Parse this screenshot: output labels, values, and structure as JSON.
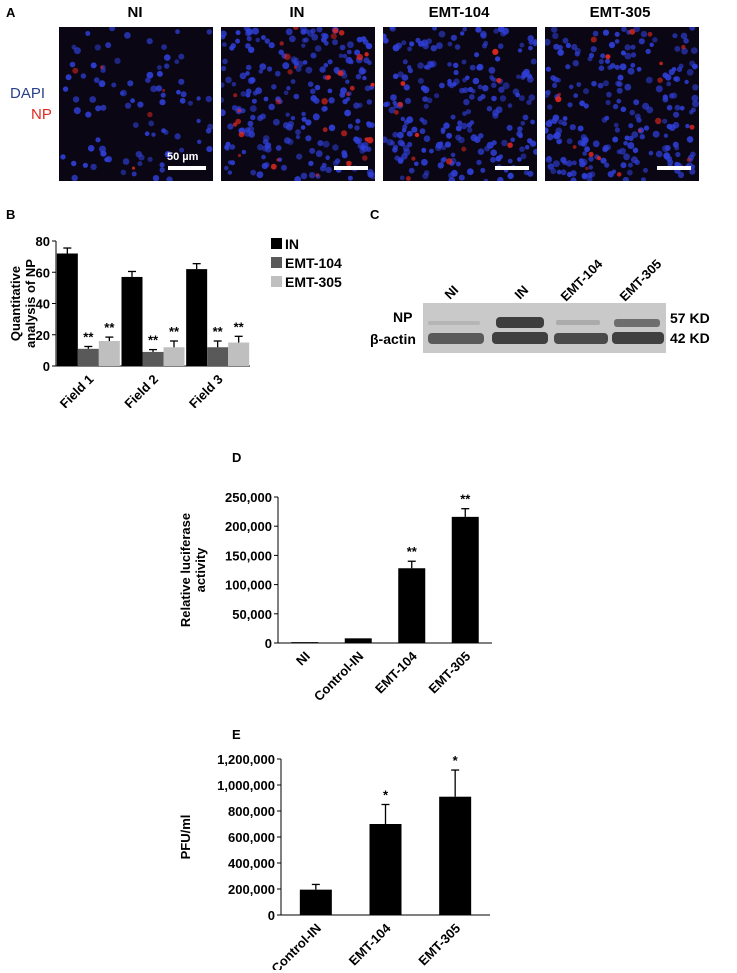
{
  "panels": {
    "A": {
      "letter": "A",
      "titles": [
        "NI",
        "IN",
        "EMT-104",
        "EMT-305"
      ],
      "stain_dapi": "DAPI",
      "stain_np": "NP",
      "dapi_color": "#2a3f8c",
      "np_color": "#e0281f",
      "scale_label": "50 µm",
      "np_intensity": [
        0.08,
        0.55,
        0.18,
        0.3
      ]
    },
    "B": {
      "letter": "B"
    },
    "C": {
      "letter": "C",
      "lanes": [
        "NI",
        "IN",
        "EMT-104",
        "EMT-305"
      ],
      "rows": [
        "NP",
        "β-actin"
      ],
      "sizes": [
        "57 KDa",
        "42 KDa"
      ]
    },
    "D": {
      "letter": "D"
    },
    "E": {
      "letter": "E"
    }
  },
  "chart_data": [
    {
      "id": "B",
      "type": "bar",
      "categories": [
        "Field 1",
        "Field 2",
        "Field 3"
      ],
      "series": [
        {
          "name": "IN",
          "values": [
            72,
            57,
            62
          ],
          "errors": [
            3.5,
            3.5,
            3.5
          ],
          "color": "#000000",
          "marks": [
            "",
            "",
            ""
          ]
        },
        {
          "name": "EMT-104",
          "values": [
            11,
            9,
            12
          ],
          "errors": [
            1.5,
            1.5,
            4
          ],
          "color": "#595959",
          "marks": [
            "**",
            "**",
            "**"
          ]
        },
        {
          "name": "EMT-305",
          "values": [
            16,
            12,
            15
          ],
          "errors": [
            2.5,
            4,
            4
          ],
          "color": "#bfbfbf",
          "marks": [
            "**",
            "**",
            "**"
          ]
        }
      ],
      "ylabel": "Quantitative analysis of NP",
      "ylim": [
        0,
        80
      ],
      "yticks": [
        "0",
        "20",
        "40",
        "60",
        "80"
      ],
      "legend": "right"
    },
    {
      "id": "D",
      "type": "bar",
      "categories": [
        "NI",
        "Control-IN",
        "EMT-104",
        "EMT-305"
      ],
      "values": [
        1500,
        8000,
        128000,
        216000
      ],
      "errors": [
        0,
        0,
        12000,
        14000
      ],
      "marks": [
        "",
        "",
        "**",
        "**"
      ],
      "ylabel": "Relative luciferase activity",
      "ylim": [
        0,
        250000
      ],
      "yticks": [
        "0",
        "50,000",
        "100,000",
        "150,000",
        "200,000",
        "250,000"
      ]
    },
    {
      "id": "E",
      "type": "bar",
      "categories": [
        "Control-IN",
        "EMT-104",
        "EMT-305"
      ],
      "values": [
        195000,
        700000,
        910000
      ],
      "errors": [
        40000,
        150000,
        205000
      ],
      "marks": [
        "",
        "*",
        "*"
      ],
      "ylabel": "PFU/ml",
      "ylim": [
        0,
        1200000
      ],
      "yticks": [
        "0",
        "200,000",
        "400,000",
        "600,000",
        "800,000",
        "1,000,000",
        "1,200,000"
      ]
    }
  ]
}
